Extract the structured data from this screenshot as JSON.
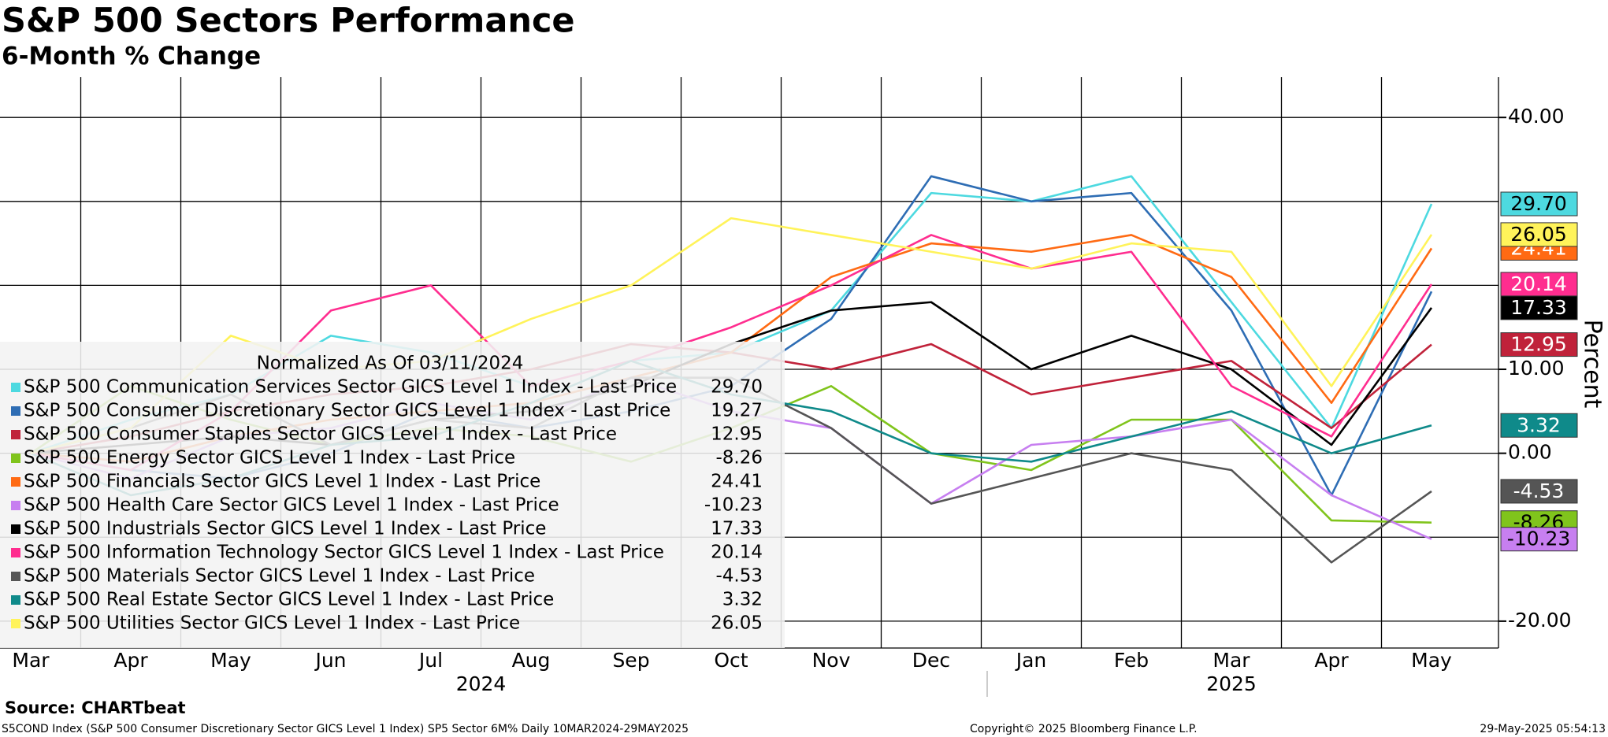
{
  "chart_data": {
    "type": "line",
    "title": "S&P 500 Sectors Performance",
    "subtitle": "6-Month % Change",
    "y_label": "Percent",
    "legend_title": "Normalized As Of 03/11/2024",
    "source": "Source: CHARTbeat",
    "footer_left": "S5COND Index (S&P 500 Consumer Discretionary Sector GICS Level 1 Index) SP5 Sector 6M%  Daily 10MAR2024-29MAY2025",
    "footer_center": "Copyright© 2025 Bloomberg Finance L.P.",
    "footer_right": "29-May-2025 05:54:13",
    "categories": [
      "Mar",
      "Apr",
      "May",
      "Jun",
      "Jul",
      "Aug",
      "Sep",
      "Oct",
      "Nov",
      "Dec",
      "Jan",
      "Feb",
      "Mar",
      "Apr",
      "May"
    ],
    "years": [
      {
        "label": "2024",
        "from": 0,
        "to": 9
      },
      {
        "label": "2025",
        "from": 10,
        "to": 14
      }
    ],
    "ylim": [
      -23.2,
      44.8
    ],
    "yticks": [
      {
        "value": 40,
        "label": "40.00"
      },
      {
        "value": 10,
        "label": "10.00"
      },
      {
        "value": 0,
        "label": "0.00"
      },
      {
        "value": -20,
        "label": "-20.00"
      }
    ],
    "ygrid": [
      40,
      30,
      20,
      10,
      0,
      -10,
      -20
    ],
    "grid": true,
    "series": [
      {
        "name": "S&P 500 Communication Services Sector GICS Level 1 Index - Last Price",
        "color": "#4dd9e0",
        "values": [
          0,
          4,
          7,
          14,
          12,
          8,
          11,
          12,
          17,
          31,
          30,
          33,
          18,
          3,
          29.7
        ],
        "value_labels": [
          "29.70"
        ]
      },
      {
        "name": "S&P 500 Consumer Discretionary Sector GICS Level 1 Index - Last Price",
        "color": "#2e6db4",
        "values": [
          0,
          -2,
          -3,
          0,
          5,
          3,
          5,
          8,
          16,
          33,
          30,
          31,
          17,
          -5,
          19.27
        ],
        "value_labels": [
          "19.27"
        ]
      },
      {
        "name": "S&P 500 Consumer Staples Sector GICS Level 1 Index - Last Price",
        "color": "#c0223a",
        "values": [
          0,
          2,
          5,
          7,
          8,
          10,
          13,
          12,
          10,
          13,
          7,
          9,
          11,
          3,
          12.95
        ],
        "value_labels": [
          "12.95"
        ]
      },
      {
        "name": "S&P 500 Energy Sector GICS Level 1 Index - Last Price",
        "color": "#80c41c",
        "values": [
          0,
          8,
          4,
          1,
          3,
          2,
          -1,
          3,
          8,
          0,
          -2,
          4,
          4,
          -8,
          -8.26
        ],
        "value_labels": [
          "-8.26"
        ]
      },
      {
        "name": "S&P 500 Financials Sector GICS Level 1 Index - Last Price",
        "color": "#ff6a13",
        "values": [
          0,
          -1,
          2,
          4,
          5,
          6,
          9,
          12,
          21,
          25,
          24,
          26,
          21,
          6,
          24.41
        ],
        "value_labels": [
          "24.41"
        ]
      },
      {
        "name": "S&P 500 Health Care Sector GICS Level 1 Index - Last Price",
        "color": "#c77ff0",
        "values": [
          0,
          -3,
          2,
          3,
          6,
          4,
          9,
          5,
          3,
          -6,
          1,
          2,
          4,
          -5,
          -10.23
        ],
        "value_labels": [
          "-10.23"
        ]
      },
      {
        "name": "S&P 500 Industrials Sector GICS Level 1 Index - Last Price",
        "color": "#000000",
        "values": [
          0,
          1,
          2,
          1,
          4,
          5,
          8,
          13,
          17,
          18,
          10,
          14,
          10,
          1,
          17.33
        ],
        "value_labels": [
          "17.33"
        ]
      },
      {
        "name": "S&P 500 Information Technology Sector GICS Level 1 Index - Last Price",
        "color": "#ff2d8f",
        "values": [
          0,
          -2,
          5,
          17,
          20,
          8,
          11,
          15,
          20,
          26,
          22,
          24,
          8,
          2,
          20.14
        ],
        "value_labels": [
          "20.14"
        ]
      },
      {
        "name": "S&P 500 Materials Sector GICS Level 1 Index - Last Price",
        "color": "#555555",
        "values": [
          0,
          3,
          7,
          1,
          4,
          3,
          9,
          9,
          3,
          -6,
          -3,
          0,
          -2,
          -13,
          -4.53
        ],
        "value_labels": [
          "-4.53"
        ]
      },
      {
        "name": "S&P 500 Real Estate Sector GICS Level 1 Index - Last Price",
        "color": "#0f8a8a",
        "values": [
          0,
          -5,
          -3,
          1,
          2,
          6,
          11,
          7,
          5,
          0,
          -1,
          2,
          5,
          0,
          3.32
        ],
        "value_labels": [
          "3.32"
        ]
      },
      {
        "name": "S&P 500 Utilities Sector GICS Level 1 Index - Last Price",
        "color": "#fff35a",
        "values": [
          0,
          3,
          14,
          10,
          11,
          16,
          20,
          28,
          26,
          24,
          22,
          25,
          24,
          8,
          26.05
        ],
        "value_labels": [
          "26.05"
        ]
      }
    ]
  }
}
